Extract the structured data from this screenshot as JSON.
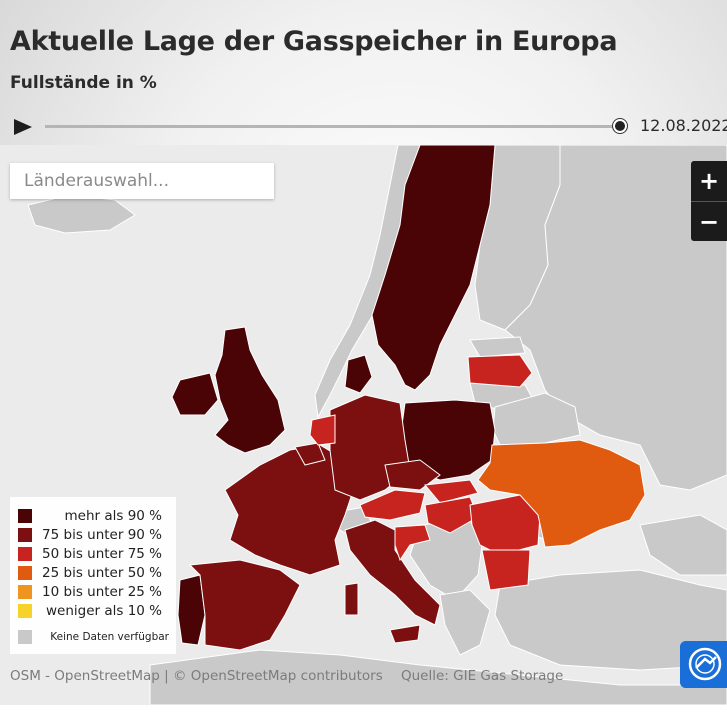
{
  "header": {
    "title": "Aktuelle Lage der Gasspeicher in Europa",
    "subtitle": "Fullstände in %"
  },
  "timeline": {
    "date": "12.08.2022",
    "progress": 1.0
  },
  "search": {
    "placeholder": "Länderauswahl..."
  },
  "zoom": {
    "in_label": "+",
    "out_label": "−"
  },
  "legend": {
    "items": [
      {
        "label": "mehr als 90 %",
        "color": "#4a0406"
      },
      {
        "label": "75 bis unter 90 %",
        "color": "#7c0f10"
      },
      {
        "label": "50 bis unter 75 %",
        "color": "#c7241f"
      },
      {
        "label": "25 bis unter 50 %",
        "color": "#e05a10"
      },
      {
        "label": "10 bis unter 25 %",
        "color": "#f09420"
      },
      {
        "label": "weniger als 10 %",
        "color": "#f6d22a"
      },
      {
        "label": "Keine Daten verfügbar",
        "color": "#c9c9c9"
      }
    ]
  },
  "footer": {
    "credits": "OSM - OpenStreetMap | © OpenStreetMap contributors",
    "source": "Quelle: GIE Gas Storage"
  },
  "map_colors": {
    "sea": "#ececec",
    "no_data": "#c9c9c9",
    "border": "#ffffff"
  },
  "countries": [
    {
      "name": "Sweden",
      "level": "mehr als 90 %"
    },
    {
      "name": "United Kingdom",
      "level": "mehr als 90 %"
    },
    {
      "name": "Poland",
      "level": "mehr als 90 %"
    },
    {
      "name": "Denmark",
      "level": "mehr als 90 %"
    },
    {
      "name": "Portugal",
      "level": "mehr als 90 %"
    },
    {
      "name": "France",
      "level": "75 bis unter 90 %"
    },
    {
      "name": "Spain",
      "level": "75 bis unter 90 %"
    },
    {
      "name": "Germany",
      "level": "75 bis unter 90 %"
    },
    {
      "name": "Italy",
      "level": "75 bis unter 90 %"
    },
    {
      "name": "Belgium",
      "level": "75 bis unter 90 %"
    },
    {
      "name": "Czechia",
      "level": "75 bis unter 90 %"
    },
    {
      "name": "Ireland",
      "level": "mehr als 90 %"
    },
    {
      "name": "Netherlands",
      "level": "50 bis unter 75 %"
    },
    {
      "name": "Latvia",
      "level": "50 bis unter 75 %"
    },
    {
      "name": "Austria",
      "level": "50 bis unter 75 %"
    },
    {
      "name": "Slovakia",
      "level": "50 bis unter 75 %"
    },
    {
      "name": "Hungary",
      "level": "50 bis unter 75 %"
    },
    {
      "name": "Romania",
      "level": "50 bis unter 75 %"
    },
    {
      "name": "Bulgaria",
      "level": "50 bis unter 75 %"
    },
    {
      "name": "Croatia",
      "level": "50 bis unter 75 %"
    },
    {
      "name": "Ukraine",
      "level": "25 bis unter 50 %"
    }
  ]
}
